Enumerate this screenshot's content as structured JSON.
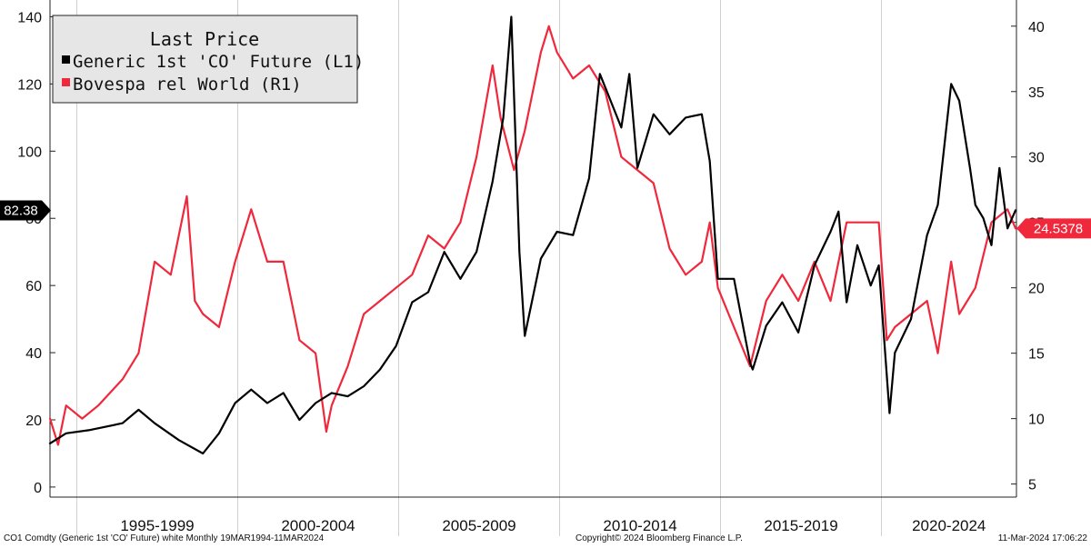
{
  "chart_data": {
    "type": "line",
    "legend": {
      "title": "Last Price",
      "placement": "top-left",
      "entries": [
        {
          "label": "Generic 1st 'CO' Future  (L1)",
          "color": "#000000"
        },
        {
          "label": "Bovespa rel World  (R1)",
          "color": "#f0283c"
        }
      ]
    },
    "x_periods": [
      "1995-1999",
      "2000-2004",
      "2005-2009",
      "2010-2014",
      "2015-2019",
      "2020-2024"
    ],
    "left_axis": {
      "ticks": [
        "0",
        "20",
        "40",
        "60",
        "80",
        "100",
        "120",
        "140"
      ],
      "ylim": [
        -3,
        145
      ]
    },
    "right_axis": {
      "ticks": [
        "5",
        "10",
        "15",
        "20",
        "25",
        "30",
        "35",
        "40"
      ],
      "ylim": [
        4,
        42
      ]
    },
    "grid": {
      "vertical": true,
      "horizontal": false
    },
    "series": [
      {
        "name": "Generic 1st 'CO' Future  (L1)",
        "axis": "left",
        "color": "#000000",
        "last_value_tag": "82.38",
        "points": [
          [
            "1994-03",
            13
          ],
          [
            "1994-09",
            16
          ],
          [
            "1995-06",
            17
          ],
          [
            "1996-06",
            19
          ],
          [
            "1996-12",
            23
          ],
          [
            "1997-06",
            19
          ],
          [
            "1998-03",
            14
          ],
          [
            "1998-12",
            10
          ],
          [
            "1999-06",
            16
          ],
          [
            "1999-12",
            25
          ],
          [
            "2000-06",
            29
          ],
          [
            "2000-12",
            25
          ],
          [
            "2001-06",
            28
          ],
          [
            "2001-12",
            20
          ],
          [
            "2002-06",
            25
          ],
          [
            "2002-12",
            28
          ],
          [
            "2003-06",
            27
          ],
          [
            "2003-12",
            30
          ],
          [
            "2004-06",
            35
          ],
          [
            "2004-12",
            42
          ],
          [
            "2005-06",
            55
          ],
          [
            "2005-12",
            58
          ],
          [
            "2006-06",
            70
          ],
          [
            "2006-12",
            62
          ],
          [
            "2007-06",
            70
          ],
          [
            "2007-12",
            91
          ],
          [
            "2008-04",
            110
          ],
          [
            "2008-07",
            140
          ],
          [
            "2008-10",
            70
          ],
          [
            "2008-12",
            45
          ],
          [
            "2009-06",
            68
          ],
          [
            "2009-12",
            76
          ],
          [
            "2010-06",
            75
          ],
          [
            "2010-12",
            92
          ],
          [
            "2011-04",
            123
          ],
          [
            "2011-12",
            107
          ],
          [
            "2012-03",
            123
          ],
          [
            "2012-06",
            95
          ],
          [
            "2012-12",
            111
          ],
          [
            "2013-06",
            105
          ],
          [
            "2013-12",
            110
          ],
          [
            "2014-06",
            111
          ],
          [
            "2014-09",
            97
          ],
          [
            "2014-12",
            62
          ],
          [
            "2015-06",
            62
          ],
          [
            "2015-12",
            37
          ],
          [
            "2016-01",
            35
          ],
          [
            "2016-06",
            48
          ],
          [
            "2016-12",
            55
          ],
          [
            "2017-06",
            46
          ],
          [
            "2017-12",
            66
          ],
          [
            "2018-06",
            76
          ],
          [
            "2018-09",
            82
          ],
          [
            "2018-12",
            55
          ],
          [
            "2019-04",
            72
          ],
          [
            "2019-09",
            60
          ],
          [
            "2019-12",
            66
          ],
          [
            "2020-04",
            22
          ],
          [
            "2020-06",
            40
          ],
          [
            "2020-12",
            50
          ],
          [
            "2021-06",
            75
          ],
          [
            "2021-10",
            84
          ],
          [
            "2022-03",
            120
          ],
          [
            "2022-06",
            115
          ],
          [
            "2022-10",
            95
          ],
          [
            "2022-12",
            84
          ],
          [
            "2023-03",
            80
          ],
          [
            "2023-06",
            72
          ],
          [
            "2023-09",
            95
          ],
          [
            "2023-12",
            77
          ],
          [
            "2024-03",
            82.38
          ]
        ]
      },
      {
        "name": "Bovespa rel World  (R1)",
        "axis": "right",
        "color": "#f0283c",
        "last_value_tag": "24.5378",
        "points": [
          [
            "1994-03",
            10
          ],
          [
            "1994-06",
            8
          ],
          [
            "1994-09",
            11
          ],
          [
            "1995-03",
            10
          ],
          [
            "1995-09",
            11
          ],
          [
            "1996-06",
            13
          ],
          [
            "1996-12",
            15
          ],
          [
            "1997-06",
            22
          ],
          [
            "1997-12",
            21
          ],
          [
            "1998-06",
            27
          ],
          [
            "1998-09",
            19
          ],
          [
            "1998-12",
            18
          ],
          [
            "1999-06",
            17
          ],
          [
            "1999-12",
            22
          ],
          [
            "2000-06",
            26
          ],
          [
            "2000-12",
            22
          ],
          [
            "2001-06",
            22
          ],
          [
            "2001-12",
            16
          ],
          [
            "2002-06",
            15
          ],
          [
            "2002-10",
            9
          ],
          [
            "2002-12",
            11
          ],
          [
            "2003-06",
            14
          ],
          [
            "2003-12",
            18
          ],
          [
            "2004-06",
            19
          ],
          [
            "2004-12",
            20
          ],
          [
            "2005-06",
            21
          ],
          [
            "2005-12",
            24
          ],
          [
            "2006-06",
            23
          ],
          [
            "2006-12",
            25
          ],
          [
            "2007-06",
            30
          ],
          [
            "2007-12",
            37
          ],
          [
            "2008-03",
            33
          ],
          [
            "2008-08",
            29
          ],
          [
            "2008-12",
            32
          ],
          [
            "2009-06",
            38
          ],
          [
            "2009-09",
            40
          ],
          [
            "2009-12",
            38
          ],
          [
            "2010-06",
            36
          ],
          [
            "2010-12",
            37
          ],
          [
            "2011-06",
            35
          ],
          [
            "2011-12",
            30
          ],
          [
            "2012-06",
            29
          ],
          [
            "2012-12",
            28
          ],
          [
            "2013-06",
            23
          ],
          [
            "2013-12",
            21
          ],
          [
            "2014-06",
            22
          ],
          [
            "2014-09",
            25
          ],
          [
            "2014-12",
            20
          ],
          [
            "2015-06",
            17
          ],
          [
            "2015-12",
            14
          ],
          [
            "2016-06",
            19
          ],
          [
            "2016-12",
            21
          ],
          [
            "2017-06",
            19
          ],
          [
            "2017-12",
            22
          ],
          [
            "2018-06",
            19
          ],
          [
            "2018-12",
            25
          ],
          [
            "2019-06",
            25
          ],
          [
            "2019-12",
            25
          ],
          [
            "2020-03",
            16
          ],
          [
            "2020-06",
            17
          ],
          [
            "2020-12",
            18
          ],
          [
            "2021-06",
            19
          ],
          [
            "2021-10",
            15
          ],
          [
            "2022-03",
            22
          ],
          [
            "2022-06",
            18
          ],
          [
            "2022-12",
            20
          ],
          [
            "2023-06",
            25
          ],
          [
            "2023-12",
            26
          ],
          [
            "2024-03",
            24.54
          ]
        ]
      }
    ]
  },
  "footer": {
    "left": "CO1 Comdty (Generic 1st 'CO' Future) white  Monthly 19MAR1994-11MAR2024",
    "center": "Copyright© 2024 Bloomberg Finance L.P.",
    "right": "11-Mar-2024 17:06:22"
  }
}
